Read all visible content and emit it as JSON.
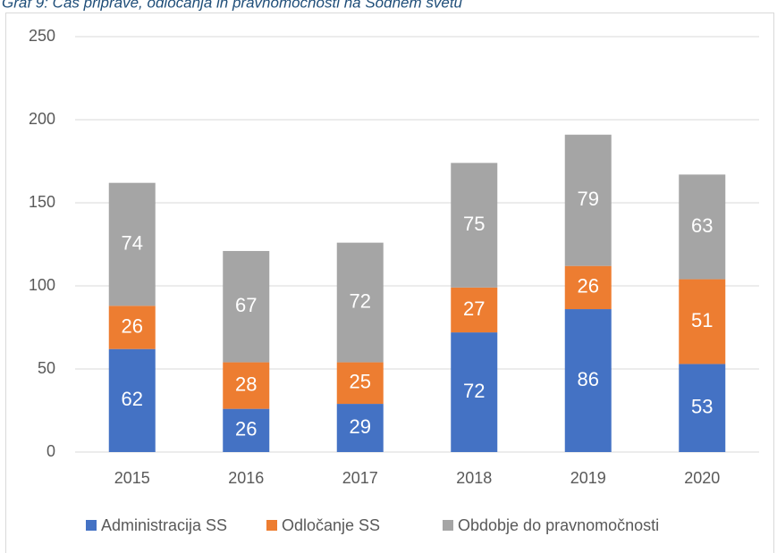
{
  "chart_data": {
    "type": "stacked_bar",
    "title": "Graf 9: Čas priprave, odločanja in pravnomočnosti na Sodnem svetu",
    "categories": [
      "2015",
      "2016",
      "2017",
      "2018",
      "2019",
      "2020"
    ],
    "series": [
      {
        "name": "Administracija SS",
        "color": "#4472c4",
        "values": [
          62,
          26,
          29,
          72,
          86,
          53
        ]
      },
      {
        "name": "Odločanje SS",
        "color": "#ed7d31",
        "values": [
          26,
          28,
          25,
          27,
          26,
          51
        ]
      },
      {
        "name": "Obdobje do pravnomočnosti",
        "color": "#a5a5a5",
        "values": [
          74,
          67,
          72,
          75,
          79,
          63
        ]
      }
    ],
    "ylim": [
      0,
      250
    ],
    "yticks": [
      0,
      50,
      100,
      150,
      200,
      250
    ],
    "grid": true,
    "legend": "bottom"
  }
}
